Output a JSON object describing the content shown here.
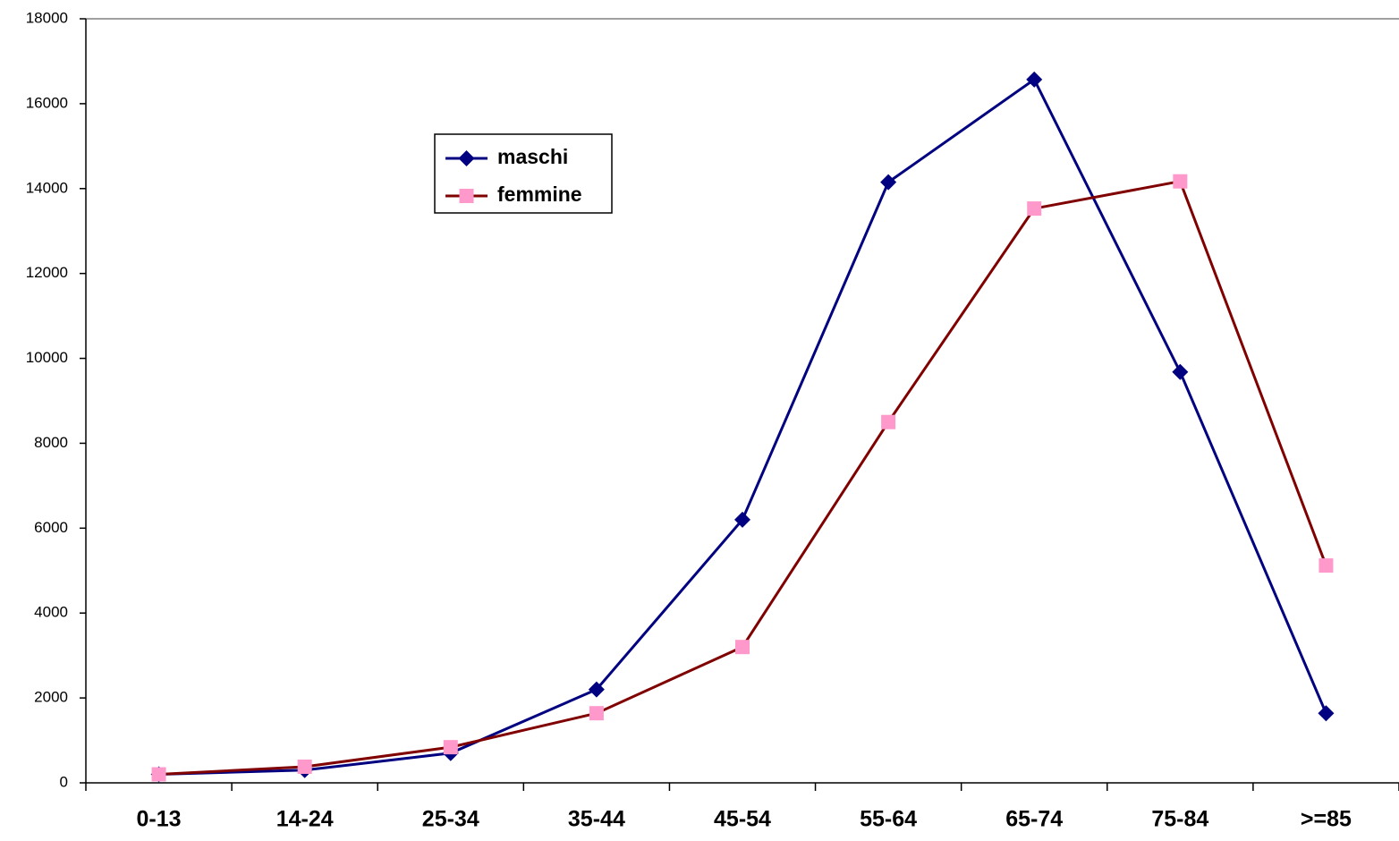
{
  "chart_data": {
    "type": "line",
    "categories": [
      "0-13",
      "14-24",
      "25-34",
      "35-44",
      "45-54",
      "55-64",
      "65-74",
      "75-84",
      ">=85"
    ],
    "series": [
      {
        "name": "maschi",
        "color": "#000080",
        "marker": "diamond",
        "marker_color": "#000080",
        "values": [
          200,
          300,
          700,
          2200,
          6200,
          14150,
          16570,
          9680,
          1640
        ]
      },
      {
        "name": "femmine",
        "color": "#800000",
        "marker": "square",
        "marker_color": "#ff99cc",
        "values": [
          200,
          380,
          840,
          1640,
          3200,
          8500,
          13530,
          14170,
          5120
        ]
      }
    ],
    "ylim": [
      0,
      18000
    ],
    "yticks": [
      0,
      2000,
      4000,
      6000,
      8000,
      10000,
      12000,
      14000,
      16000,
      18000
    ],
    "grid": false
  }
}
